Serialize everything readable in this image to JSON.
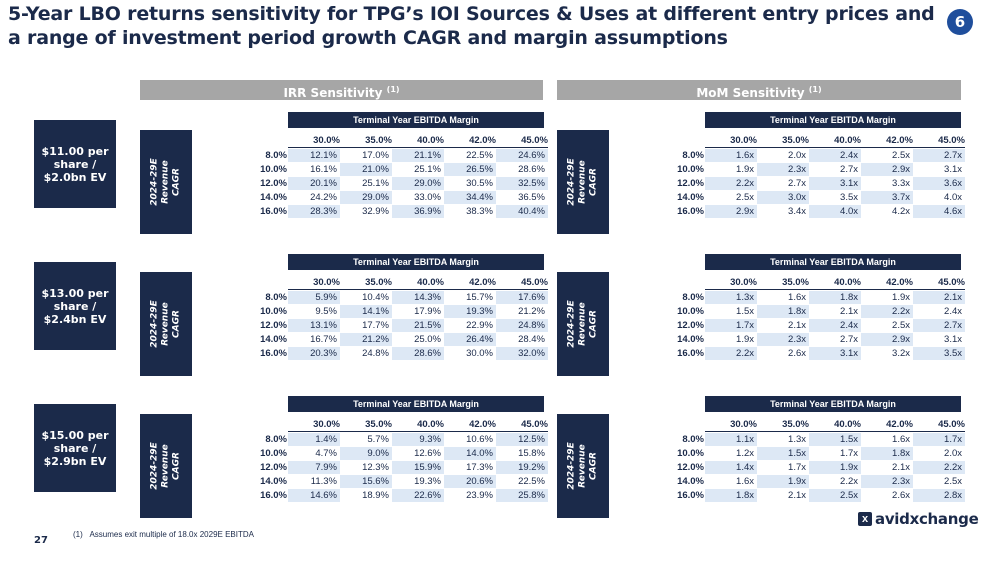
{
  "title": "5-Year LBO returns sensitivity for TPG’s IOI Sources & Uses at different entry prices and a range of investment period growth CAGR and margin assumptions",
  "badge": "6",
  "irr_header": "IRR Sensitivity",
  "mom_header": "MoM Sensitivity",
  "header_note": "(1)",
  "margin_header": "Terminal Year EBITDA Margin",
  "cagr_label": "2024-29E\nRevenue\nCAGR",
  "columns": [
    "30.0%",
    "35.0%",
    "40.0%",
    "42.0%",
    "45.0%"
  ],
  "rows": [
    "8.0%",
    "10.0%",
    "12.0%",
    "14.0%",
    "16.0%"
  ],
  "scenarios": [
    {
      "label": "$11.00 per share / $2.0bn EV",
      "irr": [
        [
          "12.1%",
          "17.0%",
          "21.1%",
          "22.5%",
          "24.6%"
        ],
        [
          "16.1%",
          "21.0%",
          "25.1%",
          "26.5%",
          "28.6%"
        ],
        [
          "20.1%",
          "25.1%",
          "29.0%",
          "30.5%",
          "32.5%"
        ],
        [
          "24.2%",
          "29.0%",
          "33.0%",
          "34.4%",
          "36.5%"
        ],
        [
          "28.3%",
          "32.9%",
          "36.9%",
          "38.3%",
          "40.4%"
        ]
      ],
      "mom": [
        [
          "1.6x",
          "2.0x",
          "2.4x",
          "2.5x",
          "2.7x"
        ],
        [
          "1.9x",
          "2.3x",
          "2.7x",
          "2.9x",
          "3.1x"
        ],
        [
          "2.2x",
          "2.7x",
          "3.1x",
          "3.3x",
          "3.6x"
        ],
        [
          "2.5x",
          "3.0x",
          "3.5x",
          "3.7x",
          "4.0x"
        ],
        [
          "2.9x",
          "3.4x",
          "4.0x",
          "4.2x",
          "4.6x"
        ]
      ]
    },
    {
      "label": "$13.00 per share / $2.4bn EV",
      "irr": [
        [
          "5.9%",
          "10.4%",
          "14.3%",
          "15.7%",
          "17.6%"
        ],
        [
          "9.5%",
          "14.1%",
          "17.9%",
          "19.3%",
          "21.2%"
        ],
        [
          "13.1%",
          "17.7%",
          "21.5%",
          "22.9%",
          "24.8%"
        ],
        [
          "16.7%",
          "21.2%",
          "25.0%",
          "26.4%",
          "28.4%"
        ],
        [
          "20.3%",
          "24.8%",
          "28.6%",
          "30.0%",
          "32.0%"
        ]
      ],
      "mom": [
        [
          "1.3x",
          "1.6x",
          "1.8x",
          "1.9x",
          "2.1x"
        ],
        [
          "1.5x",
          "1.8x",
          "2.1x",
          "2.2x",
          "2.4x"
        ],
        [
          "1.7x",
          "2.1x",
          "2.4x",
          "2.5x",
          "2.7x"
        ],
        [
          "1.9x",
          "2.3x",
          "2.7x",
          "2.9x",
          "3.1x"
        ],
        [
          "2.2x",
          "2.6x",
          "3.1x",
          "3.2x",
          "3.5x"
        ]
      ]
    },
    {
      "label": "$15.00 per share / $2.9bn EV",
      "irr": [
        [
          "1.4%",
          "5.7%",
          "9.3%",
          "10.6%",
          "12.5%"
        ],
        [
          "4.7%",
          "9.0%",
          "12.6%",
          "14.0%",
          "15.8%"
        ],
        [
          "7.9%",
          "12.3%",
          "15.9%",
          "17.3%",
          "19.2%"
        ],
        [
          "11.3%",
          "15.6%",
          "19.3%",
          "20.6%",
          "22.5%"
        ],
        [
          "14.6%",
          "18.9%",
          "22.6%",
          "23.9%",
          "25.8%"
        ]
      ],
      "mom": [
        [
          "1.1x",
          "1.3x",
          "1.5x",
          "1.6x",
          "1.7x"
        ],
        [
          "1.2x",
          "1.5x",
          "1.7x",
          "1.8x",
          "2.0x"
        ],
        [
          "1.4x",
          "1.7x",
          "1.9x",
          "2.1x",
          "2.2x"
        ],
        [
          "1.6x",
          "1.9x",
          "2.2x",
          "2.3x",
          "2.5x"
        ],
        [
          "1.8x",
          "2.1x",
          "2.5x",
          "2.6x",
          "2.8x"
        ]
      ]
    }
  ],
  "footnote_marker": "(1)",
  "footnote": "Assumes exit multiple of 18.0x 2029E EBITDA",
  "page_number": "27",
  "logo": {
    "mark": "x",
    "text": "avidxchange"
  },
  "colors": {
    "navy": "#1b2a4a",
    "shade": "#dde8f5",
    "header_gray": "#a6a6a6",
    "badge": "#1f4e9c"
  }
}
